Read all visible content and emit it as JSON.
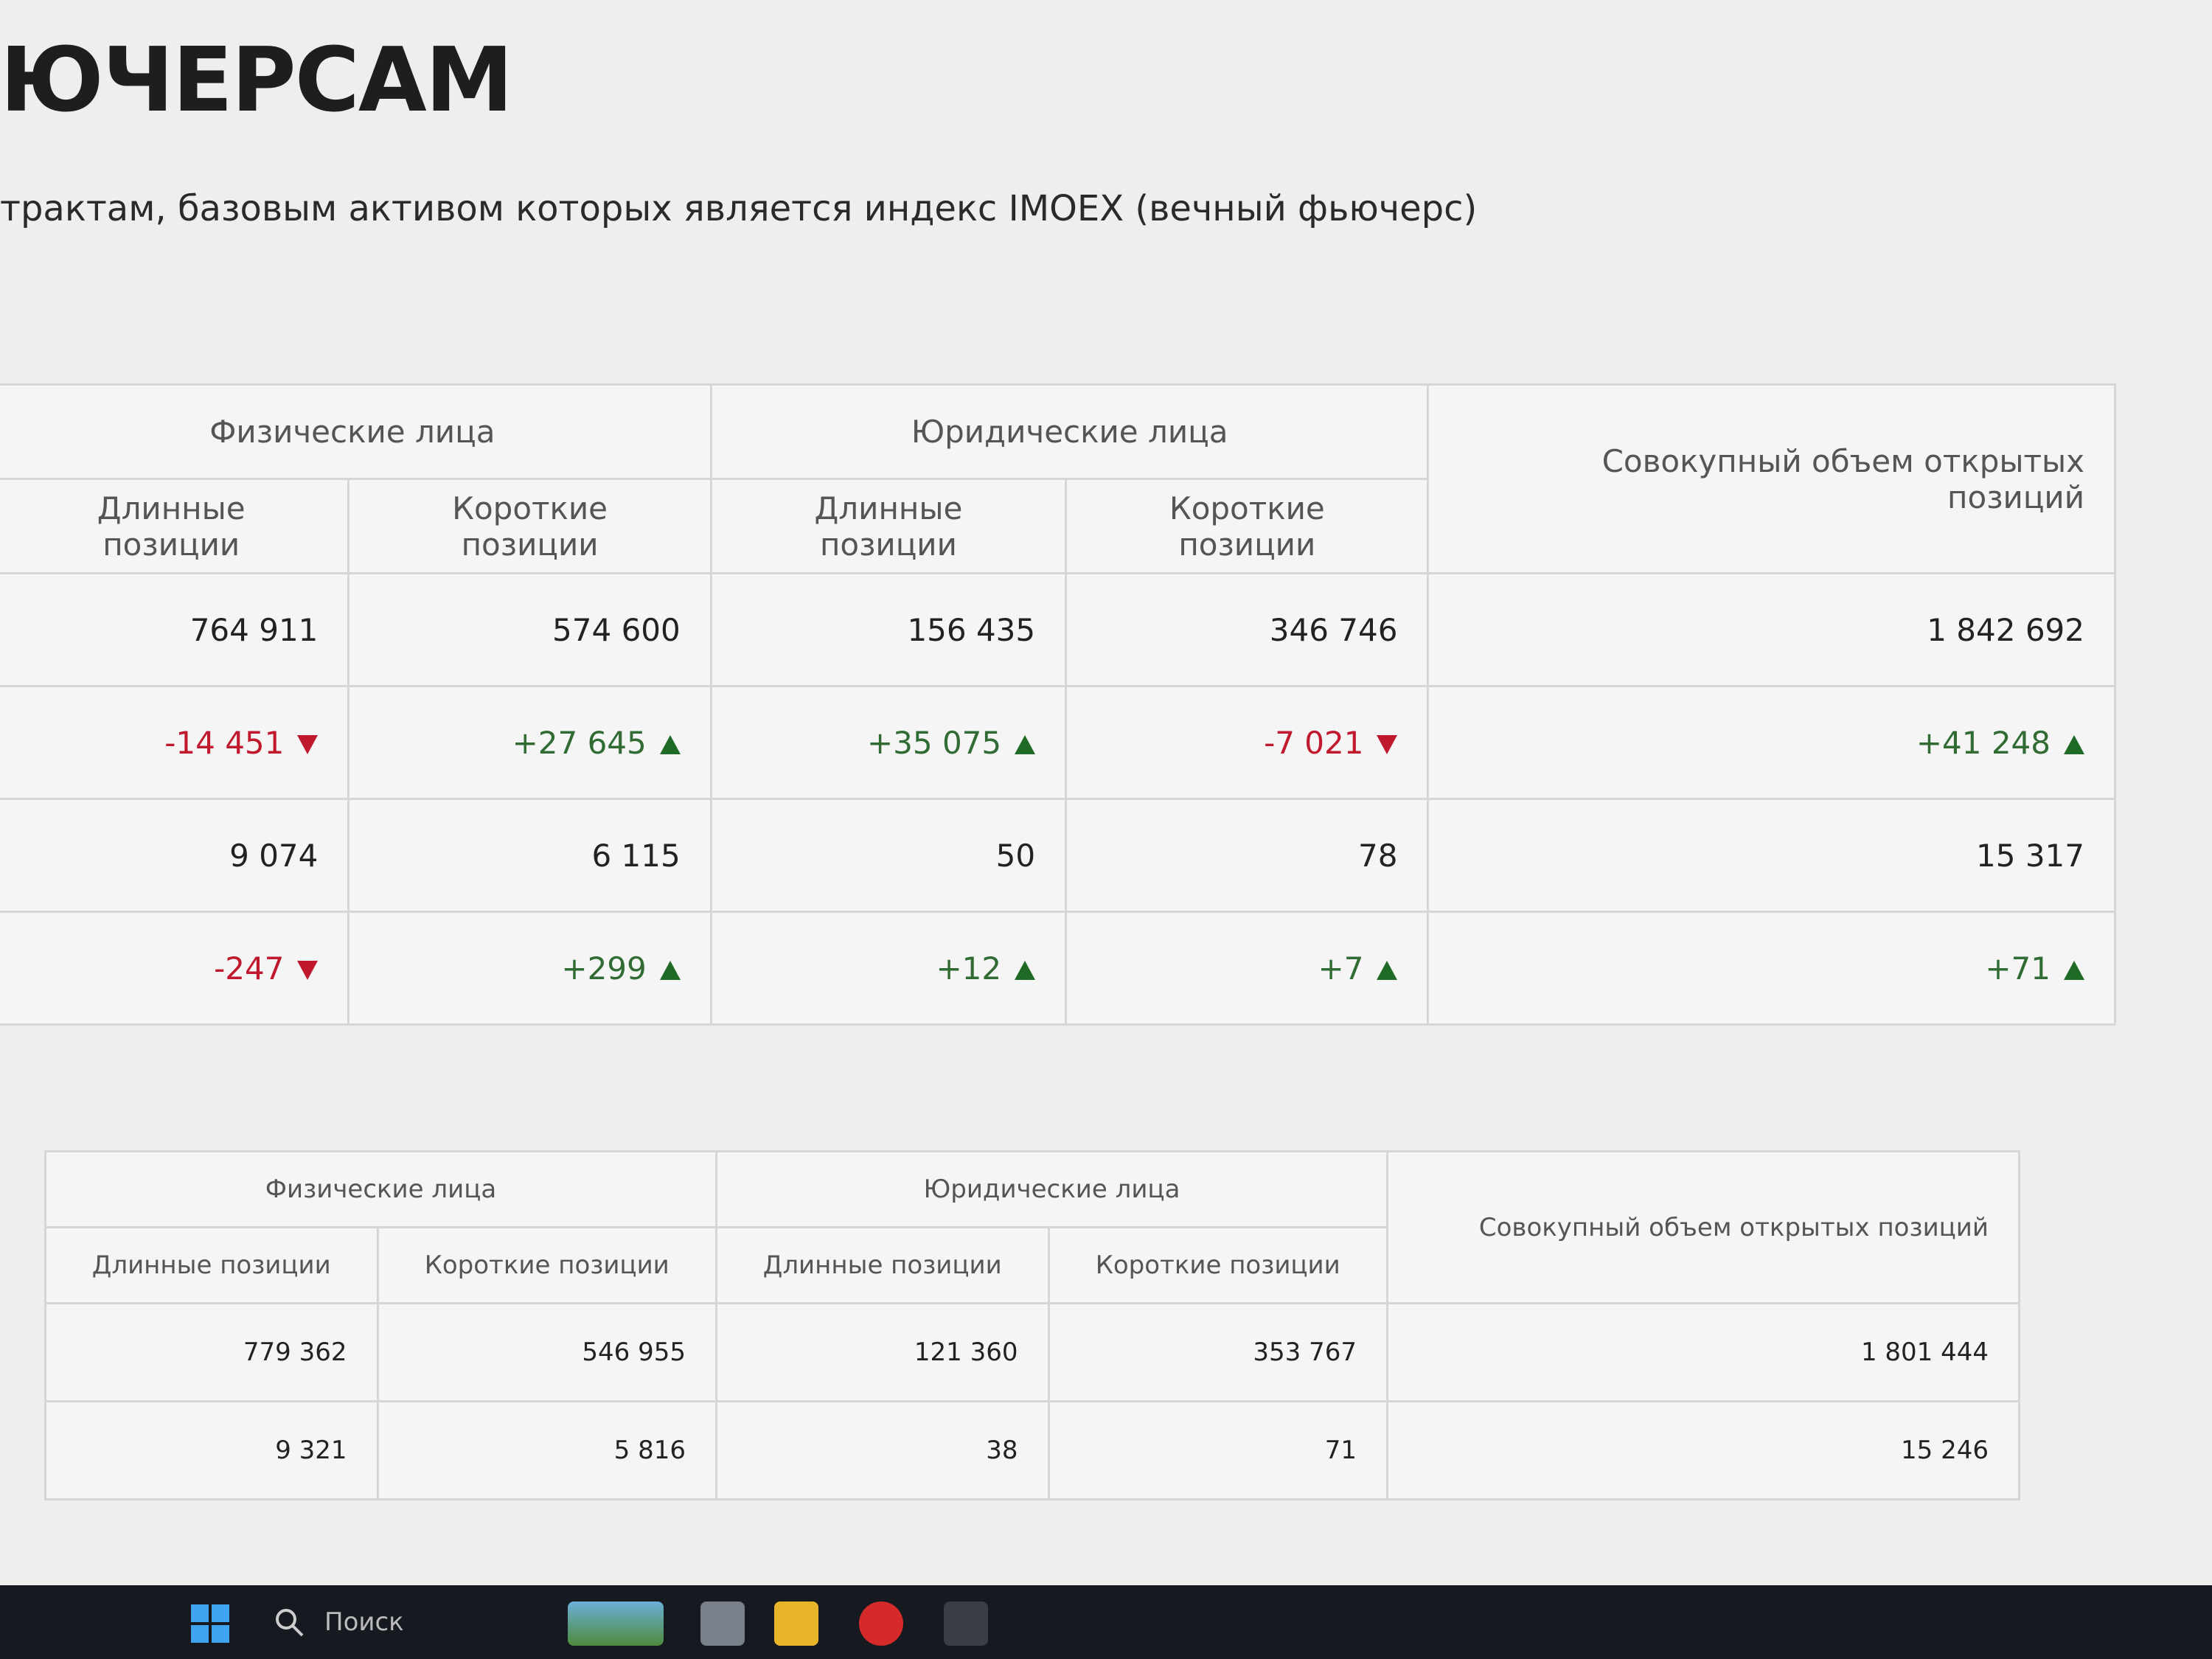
{
  "header": {
    "title": "ЮЧЕРСАМ",
    "subtitle": "трактам, базовым активом которых является индекс IMOEX (вечный фьючерс)"
  },
  "table1": {
    "group_headers": [
      "Физические лица",
      "Юридические лица"
    ],
    "columns": [
      "Длинные позиции",
      "Короткие позиции",
      "Длинные позиции",
      "Короткие позиции",
      "Совокупный объем открытых позиций"
    ],
    "rows": [
      [
        "764 911",
        "574 600",
        "156 435",
        "346 746",
        "1 842 692"
      ],
      [
        "-14 451",
        "+27 645",
        "+35 075",
        "-7 021",
        "+41 248"
      ],
      [
        "9 074",
        "6 115",
        "50",
        "78",
        "15 317"
      ],
      [
        "-247",
        "+299",
        "+12",
        "+7",
        "+71"
      ]
    ]
  },
  "table2": {
    "group_headers": [
      "Физические лица",
      "Юридические лица"
    ],
    "columns": [
      "Длинные позиции",
      "Короткие позиции",
      "Длинные позиции",
      "Короткие позиции",
      "Совокупный объем открытых позиций"
    ],
    "rows": [
      [
        "779 362",
        "546 955",
        "121 360",
        "353 767",
        "1 801 444"
      ],
      [
        "9 321",
        "5 816",
        "38",
        "71",
        "15 246"
      ]
    ]
  },
  "taskbar": {
    "search": "Поиск"
  }
}
